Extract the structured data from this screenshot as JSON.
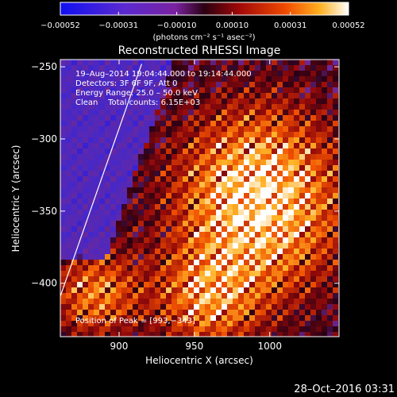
{
  "chart_data": {
    "type": "heatmap",
    "title": "Reconstructed RHESSI Image",
    "xlabel": "Heliocentric X (arcsec)",
    "ylabel": "Heliocentric Y (arcsec)",
    "xlim": [
      861,
      1046
    ],
    "ylim": [
      -437,
      -245
    ],
    "x_ticks": [
      900,
      950,
      1000
    ],
    "x_tick_labels": [
      "900",
      "950",
      "1000"
    ],
    "y_ticks": [
      -250,
      -300,
      -350,
      -400
    ],
    "y_tick_labels": [
      "−250",
      "−300",
      "−350",
      "−400"
    ],
    "colorbar": {
      "range": [
        -0.00052,
        0.00052
      ],
      "ticks": [
        -0.00052,
        -0.00031,
        -0.0001,
        0.0001,
        0.00031,
        0.00052
      ],
      "tick_labels": [
        "−0.00052",
        "−0.00031",
        "−0.00010",
        "0.00010",
        "0.00031",
        "0.00052"
      ],
      "unit_label": "(photons cm⁻² s⁻¹ asec⁻²)"
    },
    "peak": {
      "x": 993,
      "y": -343
    },
    "limb_line": [
      [
        861,
        -409
      ],
      [
        915,
        -248
      ]
    ],
    "annotations": [
      "19–Aug–2014 19:04:44.000 to 19:14:44.000",
      "Detectors: 3F 6F 9F, Att 0",
      "Energy Range: 25.0 – 50.0 keV",
      "Clean    Total counts: 6.15E+03"
    ],
    "peak_label": "Position of Peak = [993,−343]",
    "grid": false,
    "colors": {
      "background": "#000000",
      "text": "#ffffff",
      "limb": "#ffffff"
    }
  },
  "footer": {
    "timestamp": "28–Oct–2016 03:31"
  }
}
